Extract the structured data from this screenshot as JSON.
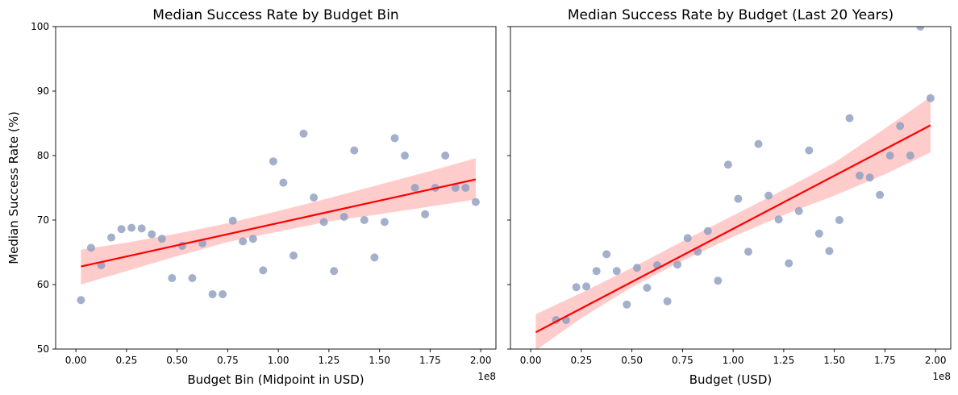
{
  "chart_data": [
    {
      "type": "scatter",
      "title": "Median Success Rate by Budget Bin",
      "xlabel": "Budget Bin (Midpoint in USD)",
      "ylabel": "Median Success Rate (%)",
      "x_offset_label": "1e8",
      "xlim": [
        -10000000,
        207500000
      ],
      "ylim": [
        50,
        100
      ],
      "x_ticks": [
        0,
        25000000,
        50000000,
        75000000,
        100000000,
        125000000,
        150000000,
        175000000,
        200000000
      ],
      "x_tick_labels": [
        "0.00",
        "0.25",
        "0.50",
        "0.75",
        "1.00",
        "1.25",
        "1.50",
        "1.75",
        "2.00"
      ],
      "y_ticks": [
        50,
        60,
        70,
        80,
        90,
        100
      ],
      "y_tick_labels": [
        "50",
        "60",
        "70",
        "80",
        "90",
        "100"
      ],
      "point_color": "#8c9cbf",
      "fit_color": "#ff0000",
      "band_color": "#ffcccc",
      "points": [
        [
          2500000,
          57.6
        ],
        [
          7500000,
          65.7
        ],
        [
          12500000,
          63.0
        ],
        [
          17500000,
          67.3
        ],
        [
          22500000,
          68.6
        ],
        [
          27500000,
          68.8
        ],
        [
          32500000,
          68.7
        ],
        [
          37500000,
          67.8
        ],
        [
          42500000,
          67.1
        ],
        [
          47500000,
          61.0
        ],
        [
          52500000,
          66.0
        ],
        [
          57500000,
          61.0
        ],
        [
          62500000,
          66.4
        ],
        [
          67500000,
          58.5
        ],
        [
          72500000,
          58.5
        ],
        [
          77500000,
          69.9
        ],
        [
          82500000,
          66.7
        ],
        [
          87500000,
          67.1
        ],
        [
          92500000,
          62.2
        ],
        [
          97500000,
          79.1
        ],
        [
          102500000,
          75.8
        ],
        [
          107500000,
          64.5
        ],
        [
          112500000,
          83.4
        ],
        [
          117500000,
          73.5
        ],
        [
          122500000,
          69.7
        ],
        [
          127500000,
          62.1
        ],
        [
          132500000,
          70.5
        ],
        [
          137500000,
          80.8
        ],
        [
          142500000,
          70.0
        ],
        [
          147500000,
          64.2
        ],
        [
          152500000,
          69.7
        ],
        [
          157500000,
          82.7
        ],
        [
          162500000,
          80.0
        ],
        [
          167500000,
          75.0
        ],
        [
          172500000,
          70.9
        ],
        [
          177500000,
          75.0
        ],
        [
          182500000,
          80.0
        ],
        [
          187500000,
          75.0
        ],
        [
          192500000,
          75.0
        ],
        [
          197500000,
          72.8
        ]
      ],
      "fit_line": [
        [
          2500000,
          62.8
        ],
        [
          197500000,
          76.3
        ]
      ],
      "confidence_band": {
        "x": [
          2500000,
          25000000,
          50000000,
          75000000,
          100000000,
          125000000,
          150000000,
          175000000,
          197500000
        ],
        "lower": [
          60.0,
          62.1,
          64.4,
          66.6,
          68.2,
          69.8,
          70.9,
          72.1,
          73.2
        ],
        "upper": [
          65.4,
          66.5,
          67.9,
          69.5,
          71.4,
          73.4,
          75.5,
          77.6,
          79.6
        ]
      }
    },
    {
      "type": "scatter",
      "title": "Median Success Rate by Budget (Last 20 Years)",
      "xlabel": "Budget (USD)",
      "ylabel": "",
      "x_offset_label": "1e8",
      "xlim": [
        -10000000,
        207500000
      ],
      "ylim": [
        50,
        100
      ],
      "x_ticks": [
        0,
        25000000,
        50000000,
        75000000,
        100000000,
        125000000,
        150000000,
        175000000,
        200000000
      ],
      "x_tick_labels": [
        "0.00",
        "0.25",
        "0.50",
        "0.75",
        "1.00",
        "1.25",
        "1.50",
        "1.75",
        "2.00"
      ],
      "y_ticks": [
        50,
        60,
        70,
        80,
        90,
        100
      ],
      "y_tick_labels": [],
      "point_color": "#8c9cbf",
      "fit_color": "#ff0000",
      "band_color": "#ffcccc",
      "points": [
        [
          12500000,
          54.5
        ],
        [
          17500000,
          54.5
        ],
        [
          22500000,
          59.6
        ],
        [
          27500000,
          59.7
        ],
        [
          32500000,
          62.1
        ],
        [
          37500000,
          64.7
        ],
        [
          42500000,
          62.1
        ],
        [
          47500000,
          56.9
        ],
        [
          52500000,
          62.6
        ],
        [
          57500000,
          59.5
        ],
        [
          62500000,
          63.0
        ],
        [
          67500000,
          57.4
        ],
        [
          72500000,
          63.1
        ],
        [
          77500000,
          67.2
        ],
        [
          82500000,
          65.1
        ],
        [
          87500000,
          68.3
        ],
        [
          92500000,
          60.6
        ],
        [
          97500000,
          78.6
        ],
        [
          102500000,
          73.3
        ],
        [
          107500000,
          65.1
        ],
        [
          112500000,
          81.8
        ],
        [
          117500000,
          73.8
        ],
        [
          122500000,
          70.1
        ],
        [
          127500000,
          63.3
        ],
        [
          132500000,
          71.4
        ],
        [
          137500000,
          80.8
        ],
        [
          142500000,
          67.9
        ],
        [
          147500000,
          65.2
        ],
        [
          152500000,
          70.0
        ],
        [
          157500000,
          85.8
        ],
        [
          162500000,
          76.9
        ],
        [
          167500000,
          76.6
        ],
        [
          172500000,
          73.9
        ],
        [
          177500000,
          80.0
        ],
        [
          182500000,
          84.6
        ],
        [
          187500000,
          80.0
        ],
        [
          192500000,
          100.0
        ],
        [
          197500000,
          88.9
        ]
      ],
      "fit_line": [
        [
          2500000,
          52.6
        ],
        [
          197500000,
          84.7
        ]
      ],
      "confidence_band": {
        "x": [
          2500000,
          25000000,
          50000000,
          75000000,
          100000000,
          125000000,
          150000000,
          175000000,
          197500000
        ],
        "lower": [
          49.8,
          54.8,
          59.6,
          63.7,
          67.4,
          70.8,
          73.8,
          77.1,
          80.5
        ],
        "upper": [
          55.4,
          58.7,
          62.6,
          66.7,
          70.7,
          74.7,
          78.9,
          84.2,
          89.1
        ]
      }
    }
  ]
}
